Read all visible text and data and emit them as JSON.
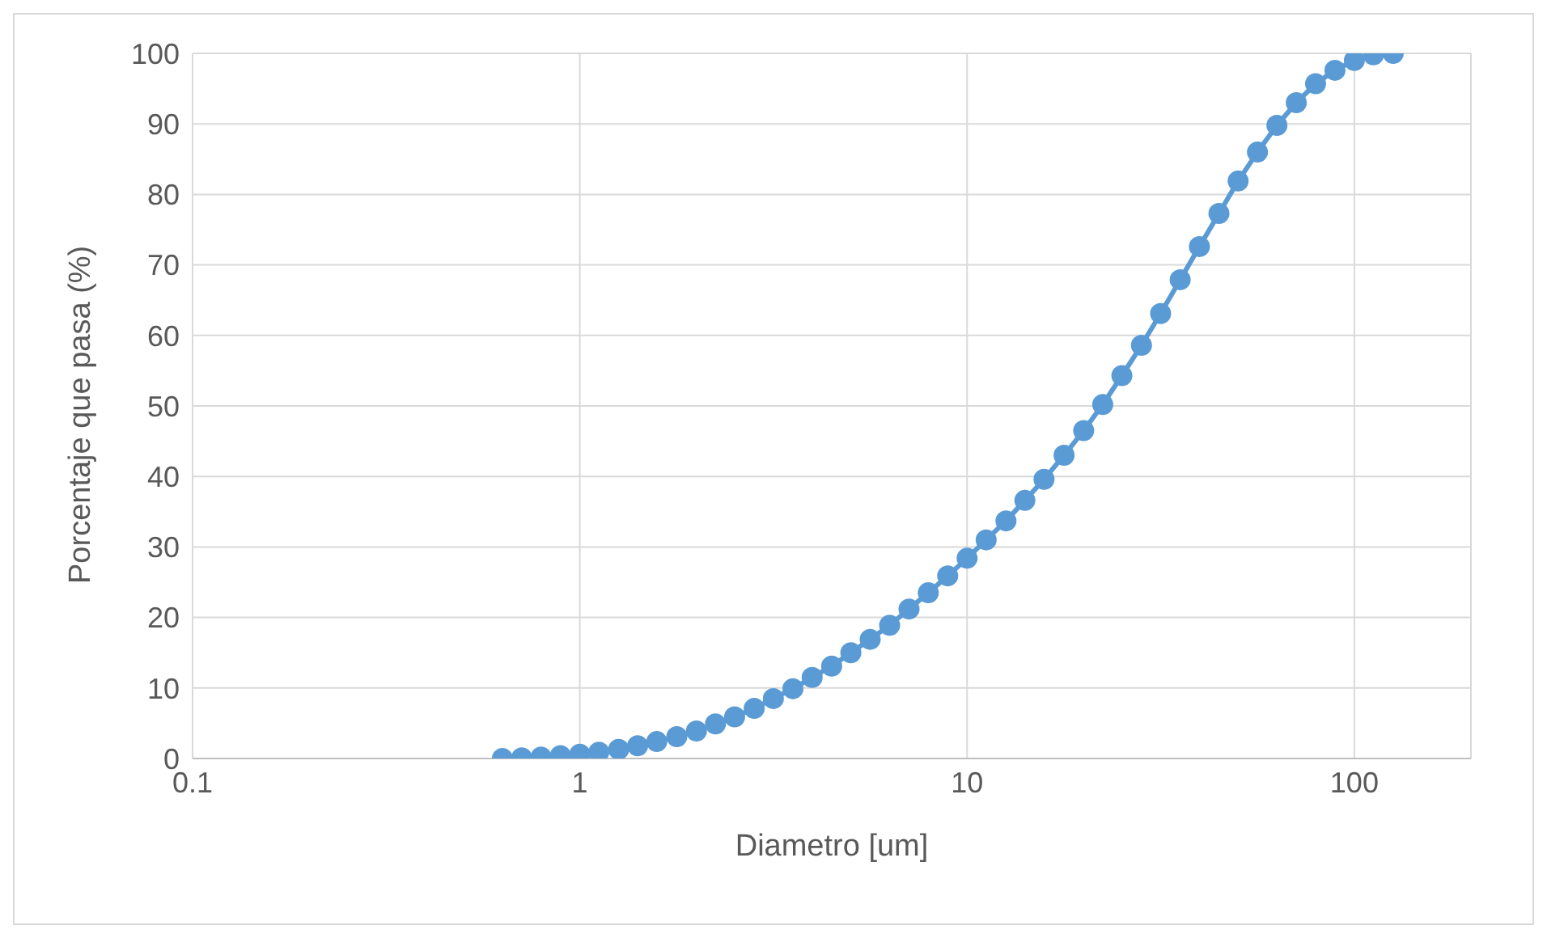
{
  "chart_data": {
    "type": "line",
    "xlabel": "Diametro [um]",
    "ylabel": "Porcentaje que pasa (%)",
    "log": "x",
    "xlim": [
      0.1,
      200
    ],
    "xticks": [
      0.1,
      1,
      10,
      100
    ],
    "ylim": [
      0,
      100
    ],
    "yticks": [
      0,
      10,
      20,
      30,
      40,
      50,
      60,
      70,
      80,
      90,
      100
    ],
    "grid": true,
    "legend": false,
    "marker": "circle",
    "line_style": "solid",
    "x": [
      0.631,
      0.708,
      0.794,
      0.891,
      1,
      1.12,
      1.26,
      1.41,
      1.58,
      1.78,
      2,
      2.24,
      2.51,
      2.82,
      3.16,
      3.55,
      3.98,
      4.47,
      5.01,
      5.62,
      6.31,
      7.08,
      7.94,
      8.91,
      10,
      11.2,
      12.6,
      14.1,
      15.8,
      17.8,
      20,
      22.4,
      25.1,
      28.2,
      31.6,
      35.5,
      39.8,
      44.7,
      50.1,
      56.2,
      63.1,
      70.8,
      79.4,
      89.1,
      100,
      112,
      126
    ],
    "series": [
      {
        "color": "#5b9bd5",
        "values": [
          0,
          0.1,
          0.2,
          0.4,
          0.6,
          0.9,
          1.3,
          1.8,
          2.4,
          3.1,
          3.9,
          4.9,
          5.9,
          7.1,
          8.5,
          9.9,
          11.5,
          13.1,
          15,
          16.9,
          18.9,
          21.2,
          23.5,
          25.9,
          28.4,
          31,
          33.7,
          36.6,
          39.6,
          43,
          46.5,
          50.2,
          54.3,
          58.6,
          63.1,
          67.9,
          72.6,
          77.3,
          81.9,
          86,
          89.8,
          93,
          95.7,
          97.6,
          99,
          99.8,
          100
        ]
      }
    ]
  }
}
